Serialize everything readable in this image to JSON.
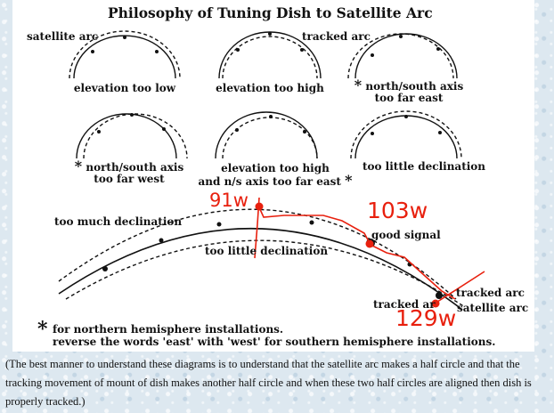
{
  "title": "Philosophy of Tuning Dish to Satellite Arc",
  "legend": {
    "satellite_arc": "satellite arc",
    "tracked_arc": "tracked arc"
  },
  "panels": [
    {
      "label": "elevation too low"
    },
    {
      "label": "elevation too high"
    },
    {
      "label_line1": "north/south axis",
      "label_line2": "too far east",
      "star": "*"
    },
    {
      "label_line1": "north/south axis",
      "label_line2": "too far west",
      "star": "*"
    },
    {
      "label_line1": "elevation too high",
      "label_line2": "and n/s axis too far east",
      "star": "*"
    },
    {
      "label": "too little declination"
    }
  ],
  "big_diagram": {
    "too_much": "too much declination",
    "too_little": "too little declination",
    "good_signal": "good signal",
    "tracked_arc_left": "tracked ar",
    "tracked_arc_right": "tracked arc",
    "satellite_arc_right": "satellite arc"
  },
  "annotations": {
    "w91": "91w",
    "w103": "103w",
    "w129": "129w"
  },
  "notes": {
    "star": "*",
    "line1": "for northern hemisphere installations.",
    "line2": "reverse the words 'east' with 'west' for southern hemisphere installations."
  },
  "caption": "(The best manner to understand these diagrams is to understand that the satellite arc makes a half circle and that the tracking movement of mount of dish makes another half circle and when these two half circles are aligned then dish is properly tracked.)",
  "colors": {
    "annotation_red": "#e8200e",
    "line": "#111111"
  }
}
